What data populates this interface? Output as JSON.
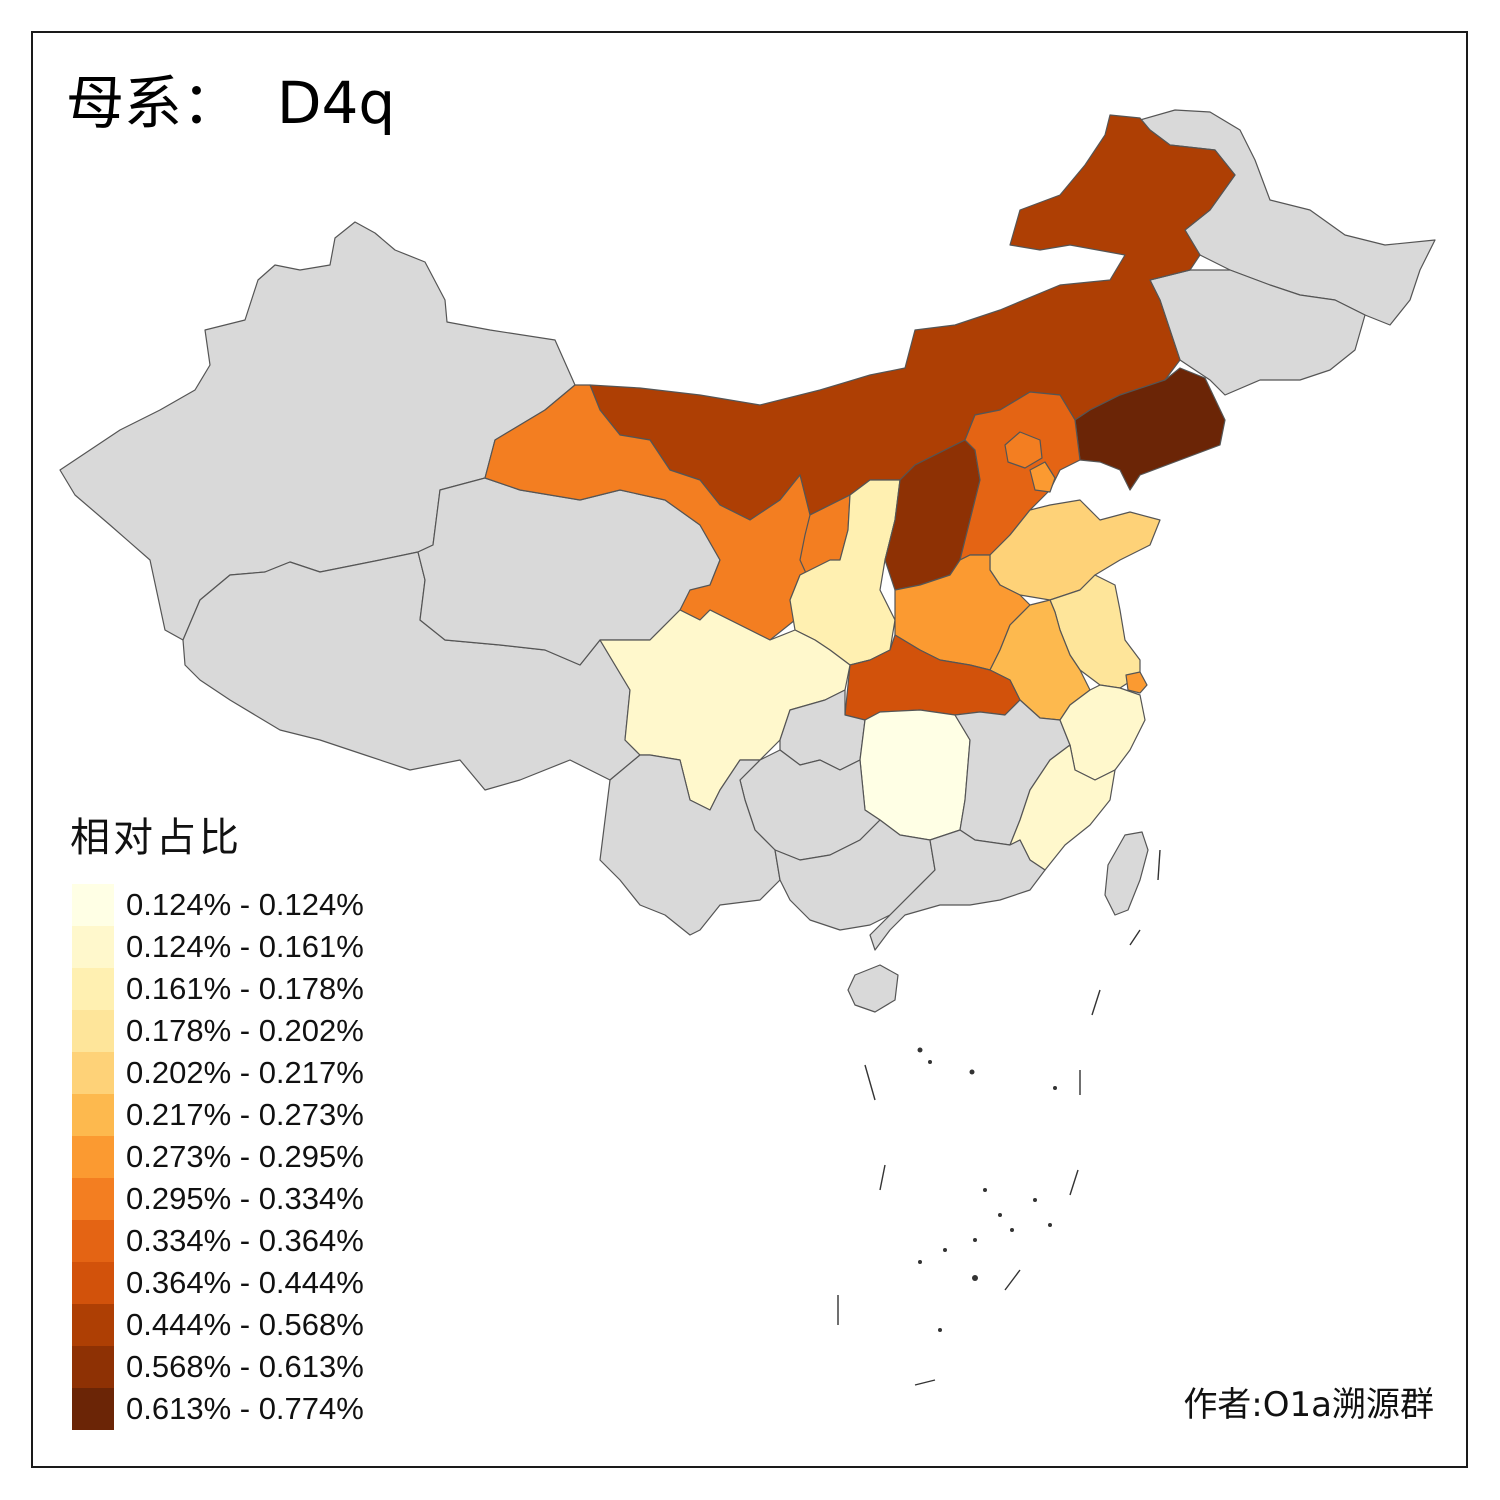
{
  "title": "母系：  D4q",
  "legend": {
    "title": "相对占比",
    "items": [
      {
        "label": "0.124% - 0.124%",
        "color": "#ffffe5"
      },
      {
        "label": "0.124% - 0.161%",
        "color": "#fff8cc"
      },
      {
        "label": "0.161% - 0.178%",
        "color": "#fff0b1"
      },
      {
        "label": "0.178% - 0.202%",
        "color": "#fee59a"
      },
      {
        "label": "0.202% - 0.217%",
        "color": "#fed278"
      },
      {
        "label": "0.217% - 0.273%",
        "color": "#fdb94e"
      },
      {
        "label": "0.273% - 0.295%",
        "color": "#fb9a31"
      },
      {
        "label": "0.295% - 0.334%",
        "color": "#f37e21"
      },
      {
        "label": "0.334% - 0.364%",
        "color": "#e46414"
      },
      {
        "label": "0.364% - 0.444%",
        "color": "#d2520b"
      },
      {
        "label": "0.444% - 0.568%",
        "color": "#ae3f04"
      },
      {
        "label": "0.568% - 0.613%",
        "color": "#8e3104"
      },
      {
        "label": "0.613% - 0.774%",
        "color": "#6b2506"
      }
    ]
  },
  "credit": "作者:O1a溯源群",
  "no_data_color": "#d9d9d9",
  "regions": [
    {
      "name": "Xinjiang",
      "bin": null
    },
    {
      "name": "Tibet",
      "bin": null
    },
    {
      "name": "Qinghai",
      "bin": null
    },
    {
      "name": "Heilongjiang",
      "bin": null
    },
    {
      "name": "Jilin",
      "bin": null
    },
    {
      "name": "Inner Mongolia",
      "bin": 10
    },
    {
      "name": "Liaoning",
      "bin": 12
    },
    {
      "name": "Gansu",
      "bin": 7
    },
    {
      "name": "Ningxia",
      "bin": 7
    },
    {
      "name": "Shaanxi",
      "bin": 2
    },
    {
      "name": "Shanxi",
      "bin": 11
    },
    {
      "name": "Hebei",
      "bin": 8
    },
    {
      "name": "Beijing",
      "bin": 7
    },
    {
      "name": "Tianjin",
      "bin": 6
    },
    {
      "name": "Shandong",
      "bin": 4
    },
    {
      "name": "Henan",
      "bin": 6
    },
    {
      "name": "Jiangsu",
      "bin": 3
    },
    {
      "name": "Shanghai",
      "bin": 6
    },
    {
      "name": "Anhui",
      "bin": 5
    },
    {
      "name": "Hubei",
      "bin": 9
    },
    {
      "name": "Sichuan",
      "bin": 1
    },
    {
      "name": "Hunan",
      "bin": 0
    },
    {
      "name": "Zhejiang",
      "bin": 1
    },
    {
      "name": "Fujian",
      "bin": 1
    },
    {
      "name": "Chongqing",
      "bin": null
    },
    {
      "name": "Guizhou",
      "bin": null
    },
    {
      "name": "Yunnan",
      "bin": null
    },
    {
      "name": "Guangxi",
      "bin": null
    },
    {
      "name": "Guangdong",
      "bin": null
    },
    {
      "name": "Jiangxi",
      "bin": null
    },
    {
      "name": "Hainan",
      "bin": null
    },
    {
      "name": "Taiwan",
      "bin": null
    }
  ]
}
